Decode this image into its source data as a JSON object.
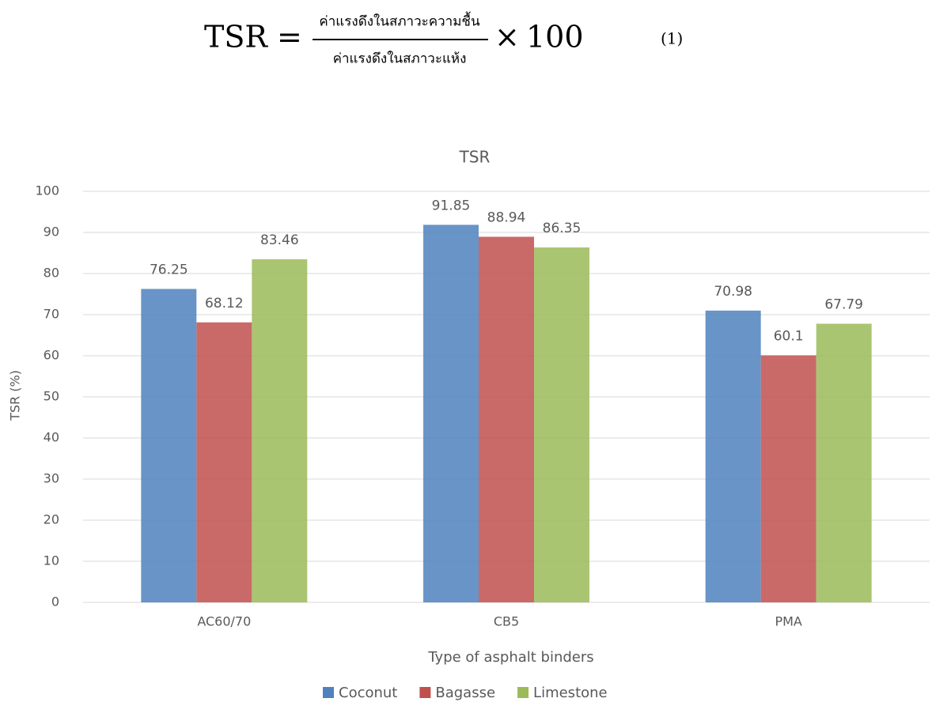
{
  "formula": {
    "lhs": "TSR",
    "equals": "=",
    "numerator": "ค่าแรงดึงในสภาวะความชื้น",
    "denominator": "ค่าแรงดึงในสภาวะแห้ง",
    "times": "×",
    "multiplier": "100",
    "equation_number": "(1)"
  },
  "chart_data": {
    "type": "bar",
    "title": "TSR",
    "x_label": "Type of asphalt binders",
    "y_label": "TSR (%)",
    "categories": [
      "AC60/70",
      "CB5",
      "PMA"
    ],
    "series": [
      {
        "name": "Coconut",
        "color": "#4f81bd",
        "values": [
          76.25,
          91.85,
          70.98
        ]
      },
      {
        "name": "Bagasse",
        "color": "#c0504d",
        "values": [
          68.12,
          88.94,
          60.1
        ]
      },
      {
        "name": "Limestone",
        "color": "#9bbb59",
        "values": [
          83.46,
          86.35,
          67.79
        ]
      }
    ],
    "ylim": [
      0,
      100
    ],
    "yticks": [
      0,
      10,
      20,
      30,
      40,
      50,
      60,
      70,
      80,
      90,
      100
    ],
    "grid": true,
    "legend": "bottom"
  }
}
